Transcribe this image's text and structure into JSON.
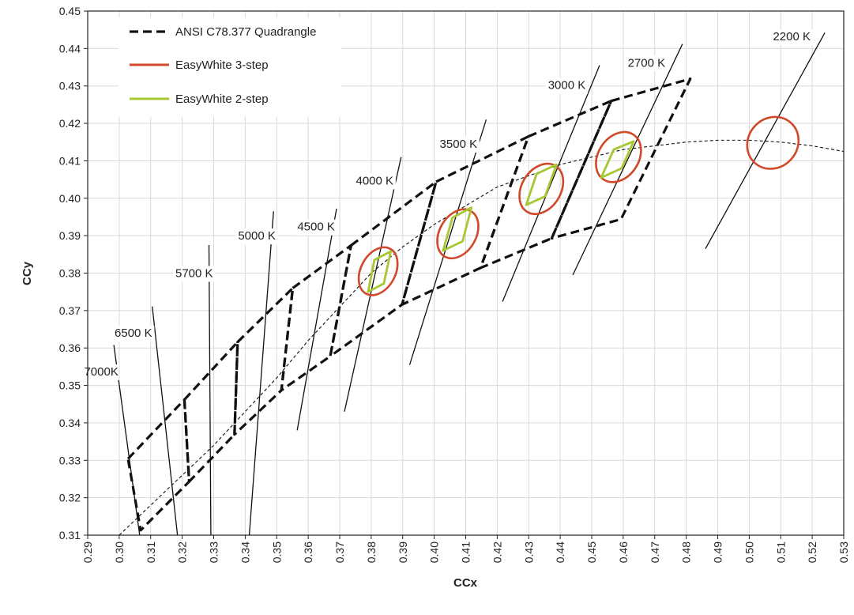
{
  "chart_data": {
    "type": "scatter",
    "xlabel": "CCx",
    "ylabel": "CCy",
    "xlim": [
      0.29,
      0.53
    ],
    "ylim": [
      0.31,
      0.45
    ],
    "x_ticks": [
      "0.29",
      "0.30",
      "0.31",
      "0.32",
      "0.33",
      "0.34",
      "0.35",
      "0.36",
      "0.37",
      "0.38",
      "0.39",
      "0.40",
      "0.41",
      "0.42",
      "0.43",
      "0.44",
      "0.45",
      "0.46",
      "0.47",
      "0.48",
      "0.49",
      "0.50",
      "0.51",
      "0.52",
      "0.53"
    ],
    "y_ticks": [
      "0.31",
      "0.32",
      "0.33",
      "0.34",
      "0.35",
      "0.36",
      "0.37",
      "0.38",
      "0.39",
      "0.40",
      "0.41",
      "0.42",
      "0.43",
      "0.44",
      "0.45"
    ],
    "grid": true,
    "legend_position": "top-left",
    "legend": [
      {
        "label": "ANSI C78.377 Quadrangle",
        "style": "dashed",
        "color": "#111111"
      },
      {
        "label": "EasyWhite 3-step",
        "style": "solid",
        "color": "#d0492a"
      },
      {
        "label": "EasyWhite 2-step",
        "style": "solid",
        "color": "#a6c832"
      }
    ],
    "planckian_locus": [
      [
        0.3,
        0.31
      ],
      [
        0.31,
        0.318
      ],
      [
        0.32,
        0.326
      ],
      [
        0.33,
        0.334
      ],
      [
        0.34,
        0.343
      ],
      [
        0.35,
        0.352
      ],
      [
        0.36,
        0.362
      ],
      [
        0.37,
        0.371
      ],
      [
        0.38,
        0.38
      ],
      [
        0.39,
        0.387
      ],
      [
        0.4,
        0.393
      ],
      [
        0.41,
        0.398
      ],
      [
        0.42,
        0.403
      ],
      [
        0.43,
        0.406
      ],
      [
        0.44,
        0.409
      ],
      [
        0.45,
        0.411
      ],
      [
        0.46,
        0.413
      ],
      [
        0.47,
        0.414
      ],
      [
        0.48,
        0.415
      ],
      [
        0.49,
        0.4155
      ],
      [
        0.5,
        0.4155
      ],
      [
        0.51,
        0.415
      ],
      [
        0.52,
        0.414
      ],
      [
        0.53,
        0.4125
      ]
    ],
    "cct_lines": [
      {
        "label": "7000K",
        "x": [
          0.3065,
          0.2983
        ],
        "y": [
          0.31,
          0.3608
        ],
        "label_x": 0.2943,
        "label_y": 0.3535
      },
      {
        "label": "6500 K",
        "x": [
          0.3185,
          0.3105
        ],
        "y": [
          0.31,
          0.3711
        ],
        "label_x": 0.3045,
        "label_y": 0.3638
      },
      {
        "label": "5700 K",
        "x": [
          0.3291,
          0.3285
        ],
        "y": [
          0.31,
          0.3875
        ],
        "label_x": 0.3238,
        "label_y": 0.3798
      },
      {
        "label": "5000 K",
        "x": [
          0.3413,
          0.349
        ],
        "y": [
          0.31,
          0.3965
        ],
        "label_x": 0.3437,
        "label_y": 0.3898
      },
      {
        "label": "4500 K",
        "x": [
          0.3565,
          0.369
        ],
        "y": [
          0.338,
          0.3972
        ],
        "label_x": 0.3625,
        "label_y": 0.3922
      },
      {
        "label": "4000 K",
        "x": [
          0.3715,
          0.3895
        ],
        "y": [
          0.343,
          0.411
        ],
        "label_x": 0.3811,
        "label_y": 0.4045
      },
      {
        "label": "3500 K",
        "x": [
          0.3922,
          0.4165
        ],
        "y": [
          0.3555,
          0.421
        ],
        "label_x": 0.4077,
        "label_y": 0.4143
      },
      {
        "label": "3000 K",
        "x": [
          0.4217,
          0.4525
        ],
        "y": [
          0.3724,
          0.4355
        ],
        "label_x": 0.4421,
        "label_y": 0.43
      },
      {
        "label": "2700 K",
        "x": [
          0.444,
          0.4788
        ],
        "y": [
          0.3795,
          0.4412
        ],
        "label_x": 0.4674,
        "label_y": 0.436
      },
      {
        "label": "2200 K",
        "x": [
          0.4861,
          0.524
        ],
        "y": [
          0.3865,
          0.4442
        ],
        "label_x": 0.5135,
        "label_y": 0.443
      }
    ],
    "ansi_quadrangles": [
      {
        "name": "7000K",
        "points": [
          [
            0.3028,
            0.3304
          ],
          [
            0.3207,
            0.3462
          ],
          [
            0.3222,
            0.3243
          ],
          [
            0.3068,
            0.3113
          ]
        ]
      },
      {
        "name": "6500K",
        "points": [
          [
            0.3207,
            0.3462
          ],
          [
            0.3376,
            0.3616
          ],
          [
            0.3366,
            0.3369
          ],
          [
            0.3222,
            0.3243
          ]
        ]
      },
      {
        "name": "5700K",
        "points": [
          [
            0.3376,
            0.3616
          ],
          [
            0.3551,
            0.376
          ],
          [
            0.3515,
            0.3487
          ],
          [
            0.3366,
            0.3369
          ]
        ]
      },
      {
        "name": "5000K",
        "points": [
          [
            0.3551,
            0.376
          ],
          [
            0.3736,
            0.3874
          ],
          [
            0.367,
            0.3578
          ],
          [
            0.3515,
            0.3487
          ]
        ]
      },
      {
        "name": "4500K",
        "points": [
          [
            0.3736,
            0.3874
          ],
          [
            0.4006,
            0.4044
          ],
          [
            0.3898,
            0.3716
          ],
          [
            0.367,
            0.3578
          ]
        ]
      },
      {
        "name": "4000K",
        "points": [
          [
            0.4006,
            0.4044
          ],
          [
            0.4299,
            0.4165
          ],
          [
            0.4147,
            0.3814
          ],
          [
            0.3898,
            0.3716
          ]
        ]
      },
      {
        "name": "3500K",
        "points": [
          [
            0.4299,
            0.4165
          ],
          [
            0.4562,
            0.426
          ],
          [
            0.4373,
            0.3893
          ],
          [
            0.4147,
            0.3814
          ]
        ]
      },
      {
        "name": "3000K",
        "points": [
          [
            0.4562,
            0.426
          ],
          [
            0.4813,
            0.4319
          ],
          [
            0.4593,
            0.3944
          ],
          [
            0.4373,
            0.3893
          ]
        ]
      }
    ],
    "easywhite_3step": [
      {
        "cx": 0.3822,
        "cy": 0.3805,
        "rx": 0.0055,
        "ry": 0.0068,
        "angle_deg": 62
      },
      {
        "cx": 0.4075,
        "cy": 0.3905,
        "rx": 0.0058,
        "ry": 0.007,
        "angle_deg": 60
      },
      {
        "cx": 0.434,
        "cy": 0.4025,
        "rx": 0.0062,
        "ry": 0.0072,
        "angle_deg": 58
      },
      {
        "cx": 0.4585,
        "cy": 0.411,
        "rx": 0.0064,
        "ry": 0.0072,
        "angle_deg": 56
      },
      {
        "cx": 0.5075,
        "cy": 0.4148,
        "rx": 0.0078,
        "ry": 0.0072,
        "angle_deg": 48
      }
    ],
    "easywhite_2step": [
      {
        "points": [
          [
            0.379,
            0.375
          ],
          [
            0.384,
            0.3772
          ],
          [
            0.3862,
            0.3858
          ],
          [
            0.381,
            0.3835
          ]
        ]
      },
      {
        "points": [
          [
            0.4028,
            0.386
          ],
          [
            0.409,
            0.3885
          ],
          [
            0.4118,
            0.3975
          ],
          [
            0.4058,
            0.3948
          ]
        ]
      },
      {
        "points": [
          [
            0.4292,
            0.3982
          ],
          [
            0.4352,
            0.4005
          ],
          [
            0.4388,
            0.409
          ],
          [
            0.4325,
            0.4065
          ]
        ]
      },
      {
        "points": [
          [
            0.453,
            0.4055
          ],
          [
            0.4595,
            0.408
          ],
          [
            0.4633,
            0.4152
          ],
          [
            0.457,
            0.413
          ]
        ]
      }
    ]
  }
}
